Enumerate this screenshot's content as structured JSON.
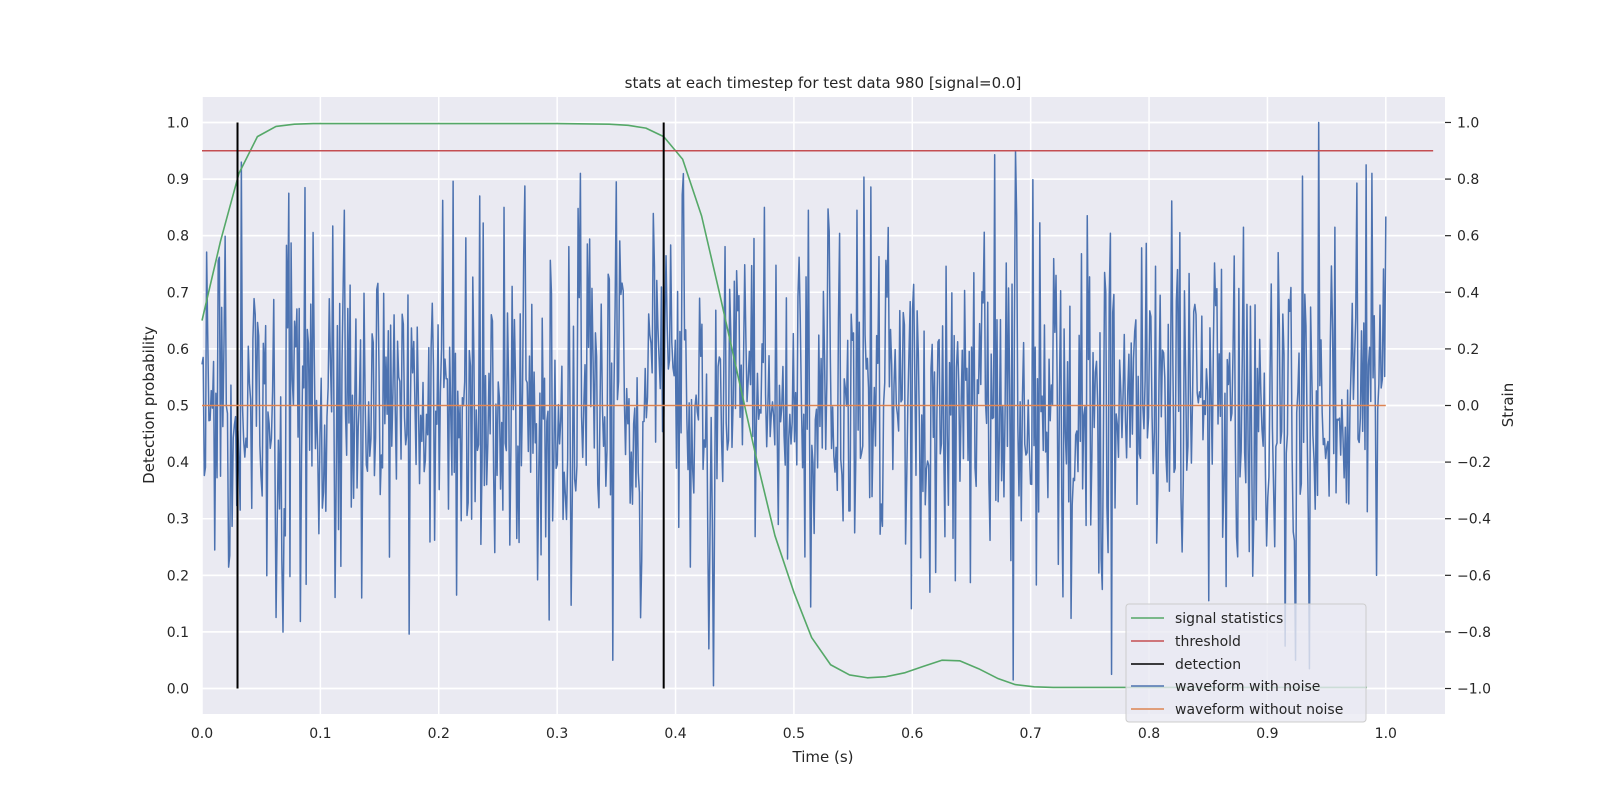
{
  "chart_data": {
    "type": "line",
    "title": "stats at each timestep for test data 980 [signal=0.0]",
    "xlabel": "Time (s)",
    "ylabel_left": "Detection probability",
    "ylabel_right": "Strain",
    "xlim": [
      0.0,
      1.05
    ],
    "ylim_left": [
      -0.045,
      1.045
    ],
    "ylim_right": [
      -1.09,
      1.09
    ],
    "x_ticks": [
      "0.0",
      "0.1",
      "0.2",
      "0.3",
      "0.4",
      "0.5",
      "0.6",
      "0.7",
      "0.8",
      "0.9",
      "1.0"
    ],
    "y_left_ticks": [
      "0.0",
      "0.1",
      "0.2",
      "0.3",
      "0.4",
      "0.5",
      "0.6",
      "0.7",
      "0.8",
      "0.9",
      "1.0"
    ],
    "y_right_ticks": [
      "−1.0",
      "−0.8",
      "−0.6",
      "−0.4",
      "−0.2",
      "0.0",
      "0.2",
      "0.4",
      "0.6",
      "0.8",
      "1.0"
    ],
    "grid": true,
    "legend_position": "bottom-right",
    "series": [
      {
        "name": "signal statistics",
        "color": "#55a868",
        "axis": "left",
        "x": [
          0.0,
          0.0156,
          0.0312,
          0.0468,
          0.0625,
          0.078,
          0.094,
          0.11,
          0.125,
          0.14,
          0.156,
          0.2,
          0.25,
          0.3,
          0.344,
          0.36,
          0.375,
          0.39,
          0.406,
          0.422,
          0.437,
          0.453,
          0.469,
          0.484,
          0.5,
          0.515,
          0.531,
          0.547,
          0.562,
          0.578,
          0.594,
          0.609,
          0.625,
          0.64,
          0.656,
          0.672,
          0.687,
          0.703,
          0.719,
          0.734,
          0.75,
          0.8,
          0.85,
          0.9,
          0.95,
          0.984
        ],
        "y": [
          0.65,
          0.79,
          0.91,
          0.975,
          0.993,
          0.997,
          0.998,
          0.998,
          0.998,
          0.998,
          0.998,
          0.998,
          0.998,
          0.998,
          0.997,
          0.995,
          0.99,
          0.975,
          0.935,
          0.835,
          0.7,
          0.55,
          0.4,
          0.27,
          0.17,
          0.09,
          0.042,
          0.024,
          0.019,
          0.021,
          0.028,
          0.039,
          0.05,
          0.049,
          0.035,
          0.018,
          0.007,
          0.003,
          0.002,
          0.002,
          0.002,
          0.002,
          0.002,
          0.002,
          0.002,
          0.002
        ]
      },
      {
        "name": "threshold",
        "color": "#c44e52",
        "axis": "left",
        "x": [
          0.0,
          1.04
        ],
        "y": [
          0.95,
          0.95
        ]
      },
      {
        "name": "detection",
        "color": "#000000",
        "axis": "left",
        "segments": [
          {
            "x": 0.03,
            "y": [
              0.0,
              1.0
            ]
          },
          {
            "x": 0.39,
            "y": [
              0.0,
              1.0
            ]
          }
        ]
      },
      {
        "name": "waveform with noise",
        "color": "#4c72b0",
        "axis": "right",
        "x_range": [
          0.0,
          1.0
        ],
        "n_points": 1024,
        "noise_std": 0.3,
        "peak_points": [
          {
            "x": 0.033,
            "y": 0.86
          },
          {
            "x": 0.073,
            "y": 0.75
          },
          {
            "x": 0.087,
            "y": 0.77
          },
          {
            "x": 0.12,
            "y": 0.69
          },
          {
            "x": 0.135,
            "y": -0.68
          },
          {
            "x": 0.215,
            "y": -0.67
          },
          {
            "x": 0.235,
            "y": 0.74
          },
          {
            "x": 0.255,
            "y": 0.7
          },
          {
            "x": 0.32,
            "y": 0.82
          },
          {
            "x": 0.35,
            "y": 0.79
          },
          {
            "x": 0.37,
            "y": -0.75
          },
          {
            "x": 0.428,
            "y": -0.86
          },
          {
            "x": 0.432,
            "y": -0.99
          },
          {
            "x": 0.475,
            "y": 0.7
          },
          {
            "x": 0.512,
            "y": 0.69
          },
          {
            "x": 0.553,
            "y": 0.69
          },
          {
            "x": 0.615,
            "y": -0.66
          },
          {
            "x": 0.685,
            "y": -0.97
          },
          {
            "x": 0.688,
            "y": 0.67
          },
          {
            "x": 0.768,
            "y": -0.95
          },
          {
            "x": 0.85,
            "y": -0.69
          },
          {
            "x": 0.88,
            "y": 0.63
          },
          {
            "x": 0.915,
            "y": -0.85
          },
          {
            "x": 0.935,
            "y": -0.93
          },
          {
            "x": 0.943,
            "y": 1.0
          },
          {
            "x": 0.957,
            "y": 0.63
          },
          {
            "x": 0.983,
            "y": 0.85
          },
          {
            "x": 0.988,
            "y": 0.82
          },
          {
            "x": 0.992,
            "y": -0.6
          }
        ]
      },
      {
        "name": "waveform without noise",
        "color": "#dd8452",
        "axis": "right",
        "x": [
          0.0,
          1.0
        ],
        "y": [
          0.0,
          0.0
        ]
      }
    ]
  }
}
